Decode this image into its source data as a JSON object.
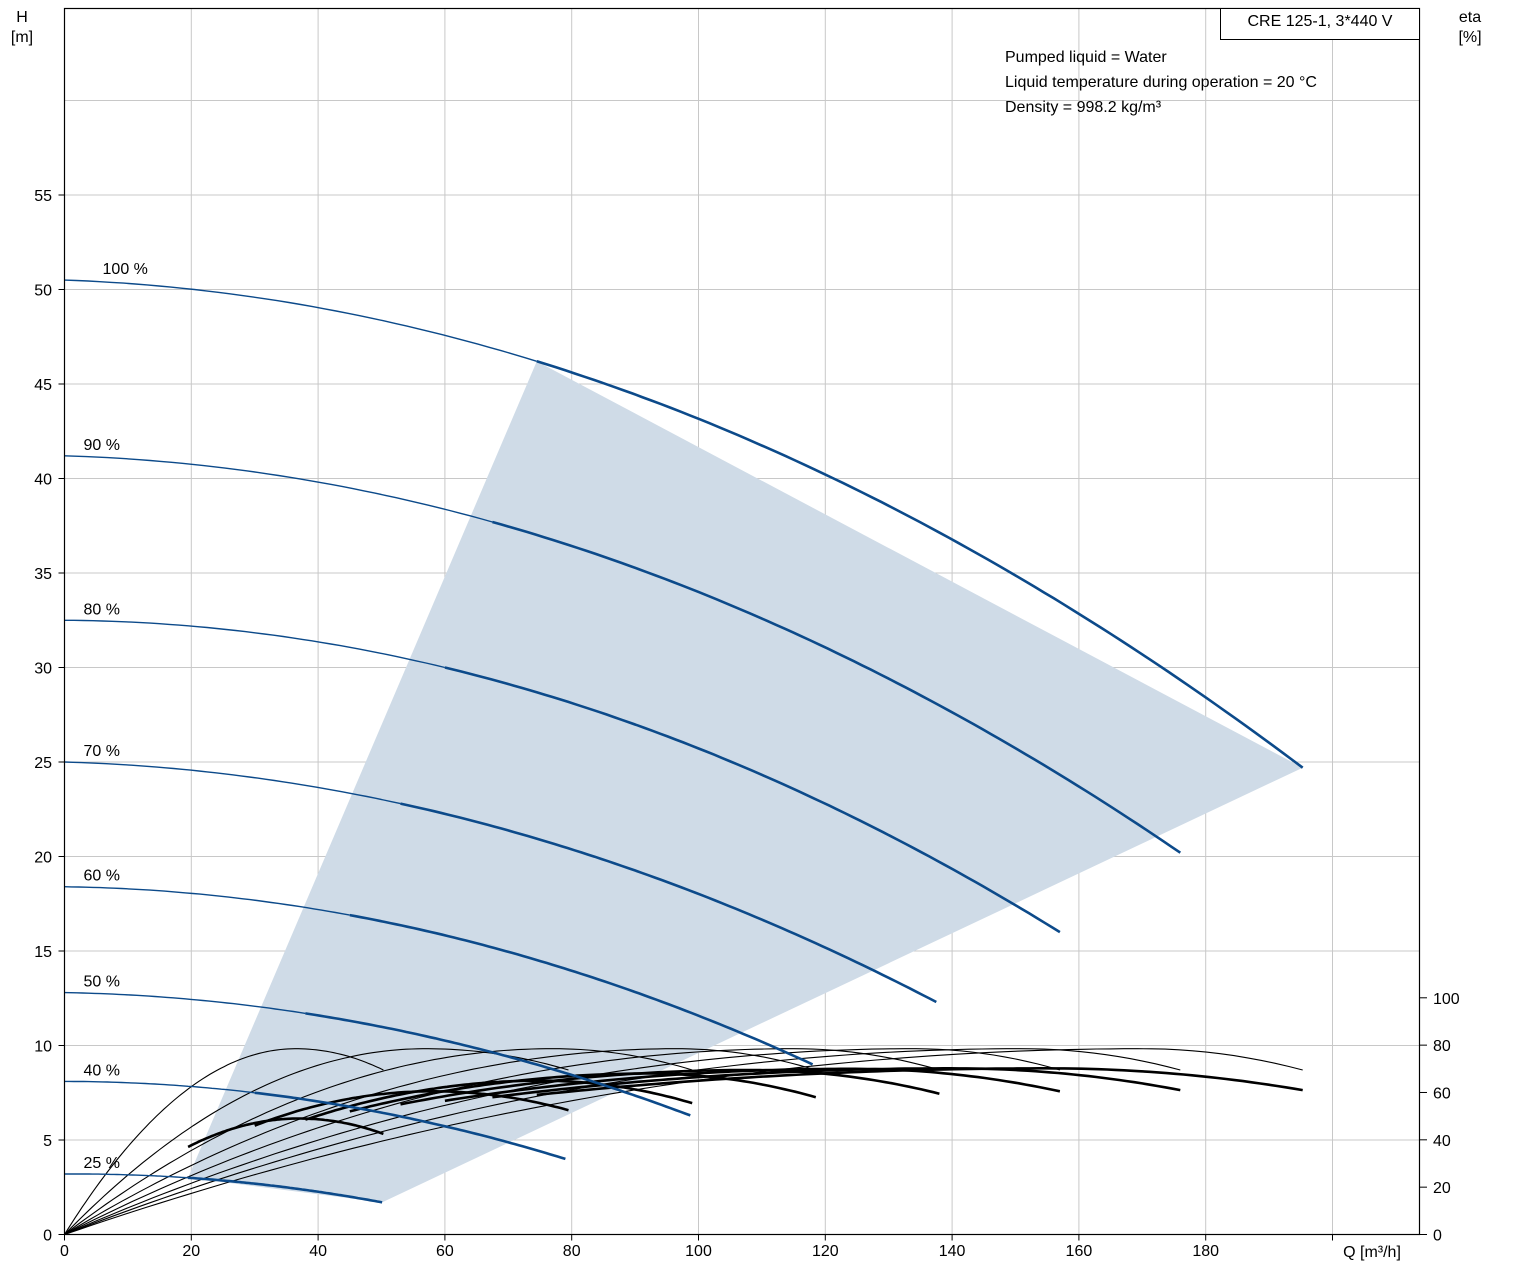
{
  "chart_data": {
    "type": "line",
    "title": "CRE 125-1, 3*440 V",
    "info_lines": [
      "Pumped liquid = Water",
      "Liquid temperature during operation = 20 °C",
      "Density = 998.2 kg/m³"
    ],
    "xlabel": "Q [m³/h]",
    "ylabel_left": [
      "H",
      "[m]"
    ],
    "ylabel_right": [
      "eta",
      "[%]"
    ],
    "xlim": [
      0,
      215
    ],
    "ylim_left": [
      0,
      65
    ],
    "ylim_right": [
      0,
      100
    ],
    "x_ticks": [
      "0",
      "20",
      "40",
      "60",
      "80",
      "100",
      "120",
      "140",
      "160",
      "180"
    ],
    "y_ticks_left": [
      "0",
      "5",
      "10",
      "15",
      "20",
      "25",
      "30",
      "35",
      "40",
      "45",
      "50",
      "55"
    ],
    "y_ticks_right": [
      "0",
      "20",
      "40",
      "60",
      "80",
      "100"
    ],
    "grid": true,
    "colors": {
      "head": "#0c4a8a",
      "efficiency": "#000000",
      "range_fill": "#cfdbe7"
    },
    "operating_range": [
      [
        19.5,
        3.0
      ],
      [
        74.5,
        46.2
      ],
      [
        195.3,
        24.7
      ],
      [
        50.1,
        1.7
      ]
    ],
    "head_curves": [
      {
        "name": "100 %",
        "shut_off": 50.5,
        "q_start": 74.5,
        "h_start": 46.2,
        "q_end": 195.3,
        "h_end": 24.7
      },
      {
        "name": "90 %",
        "shut_off": 41.2,
        "q_start": 67.5,
        "h_start": 37.7,
        "q_end": 176.0,
        "h_end": 20.2
      },
      {
        "name": "80 %",
        "shut_off": 32.5,
        "q_start": 60.0,
        "h_start": 30.0,
        "q_end": 157.0,
        "h_end": 16.0
      },
      {
        "name": "70 %",
        "shut_off": 25.0,
        "q_start": 53.0,
        "h_start": 22.8,
        "q_end": 137.5,
        "h_end": 12.3
      },
      {
        "name": "60 %",
        "shut_off": 18.4,
        "q_start": 45.0,
        "h_start": 16.9,
        "q_end": 118.0,
        "h_end": 9.0
      },
      {
        "name": "50 %",
        "shut_off": 12.8,
        "q_start": 38.0,
        "h_start": 11.7,
        "q_end": 98.7,
        "h_end": 6.3
      },
      {
        "name": "40 %",
        "shut_off": 8.1,
        "q_start": 30.0,
        "h_start": 7.5,
        "q_end": 79.0,
        "h_end": 4.0
      },
      {
        "name": "25 %",
        "shut_off": 3.2,
        "q_start": 19.5,
        "h_start": 3.0,
        "q_end": 50.1,
        "h_end": 1.7
      }
    ],
    "efficiency_curves": [
      {
        "q_peak": 36.5,
        "eta_peak": 78.5,
        "q_end": 50.3,
        "eta_end": 69.5,
        "in_range": false
      },
      {
        "q_peak": 57.0,
        "eta_peak": 78.5,
        "q_end": 79.5,
        "eta_end": 69.5,
        "in_range": false
      },
      {
        "q_peak": 77.0,
        "eta_peak": 78.5,
        "q_end": 99.0,
        "eta_end": 69.5,
        "in_range": false
      },
      {
        "q_peak": 96.5,
        "eta_peak": 78.5,
        "q_end": 118.5,
        "eta_end": 69.5,
        "in_range": false
      },
      {
        "q_peak": 115.0,
        "eta_peak": 78.5,
        "q_end": 138.0,
        "eta_end": 69.5,
        "in_range": false
      },
      {
        "q_peak": 134.0,
        "eta_peak": 78.5,
        "q_end": 157.0,
        "eta_end": 69.5,
        "in_range": false
      },
      {
        "q_peak": 151.0,
        "eta_peak": 78.5,
        "q_end": 176.0,
        "eta_end": 69.5,
        "in_range": false
      },
      {
        "q_peak": 170.0,
        "eta_peak": 78.5,
        "q_end": 195.3,
        "eta_end": 69.5,
        "in_range": false
      },
      {
        "q_peak": 37.0,
        "eta_peak": 49.0,
        "q_start": 19.5,
        "eta_start": 37.0,
        "q_end": 50.3,
        "eta_end": 42.5,
        "in_range": true
      },
      {
        "q_peak": 58.0,
        "eta_peak": 60.5,
        "q_start": 30.0,
        "eta_start": 46.0,
        "q_end": 79.5,
        "eta_end": 52.5,
        "in_range": true
      },
      {
        "q_peak": 75.0,
        "eta_peak": 65.0,
        "q_start": 38.0,
        "eta_start": 48.5,
        "q_end": 99.0,
        "eta_end": 55.5,
        "in_range": true
      },
      {
        "q_peak": 92.0,
        "eta_peak": 68.0,
        "q_start": 45.0,
        "eta_start": 52.0,
        "q_end": 118.5,
        "eta_end": 58.0,
        "in_range": true
      },
      {
        "q_peak": 108.0,
        "eta_peak": 69.5,
        "q_start": 53.0,
        "eta_start": 55.0,
        "q_end": 138.0,
        "eta_end": 59.5,
        "in_range": true
      },
      {
        "q_peak": 124.0,
        "eta_peak": 70.0,
        "q_start": 60.0,
        "eta_start": 56.5,
        "q_end": 157.0,
        "eta_end": 60.5,
        "in_range": true
      },
      {
        "q_peak": 140.0,
        "eta_peak": 70.2,
        "q_start": 67.5,
        "eta_start": 58.0,
        "q_end": 176.0,
        "eta_end": 61.0,
        "in_range": true
      },
      {
        "q_peak": 155.0,
        "eta_peak": 70.2,
        "q_start": 74.5,
        "eta_start": 59.0,
        "q_end": 195.3,
        "eta_end": 61.0,
        "in_range": true
      }
    ]
  }
}
